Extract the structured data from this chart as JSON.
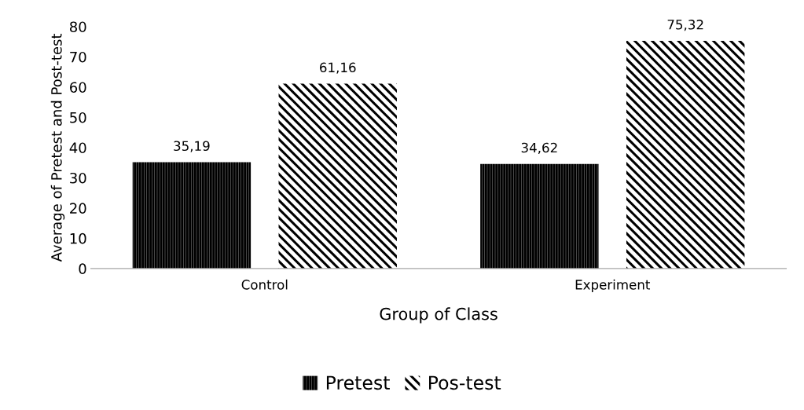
{
  "chart_data": {
    "type": "bar",
    "xlabel": "Group of Class",
    "ylabel": "Average of Pretest and Post-test",
    "categories": [
      "Control",
      "Experiment"
    ],
    "series": [
      {
        "name": "Pretest",
        "color": "#000000",
        "values": [
          35.19,
          34.62
        ],
        "value_labels": [
          "35,19",
          "34,62"
        ]
      },
      {
        "name": "Pos-test",
        "color": "#000000",
        "values": [
          61.16,
          75.32
        ],
        "value_labels": [
          "61,16",
          "75,32"
        ]
      }
    ],
    "ylim": [
      0,
      80
    ],
    "yticks": [
      0,
      10,
      20,
      30,
      40,
      50,
      60,
      70,
      80
    ],
    "grid": false,
    "legend": "bottom"
  }
}
